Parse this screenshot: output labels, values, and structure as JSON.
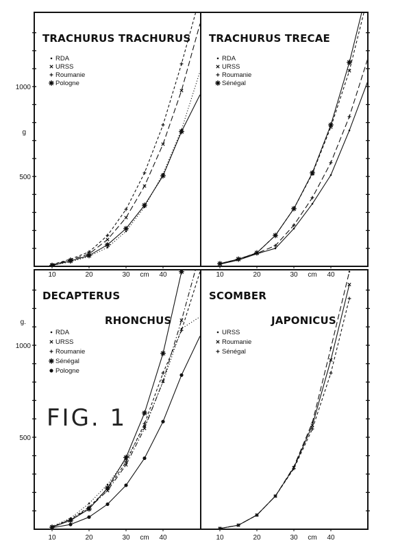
{
  "figure_label": "FIG. 1",
  "colors": {
    "ink": "#111111",
    "paper": "#ffffff"
  },
  "chart_data": [
    {
      "type": "line",
      "title": "TRACHURUS TRACHURUS",
      "xlabel": "cm",
      "ylabel": "g",
      "xticks": [
        "10",
        "20",
        "30",
        "40"
      ],
      "yticks": [
        {
          "label": "500",
          "value": 500
        },
        {
          "label": "1000",
          "value": 1000
        }
      ],
      "xlim": [
        5,
        50
      ],
      "ylim": [
        0,
        1420
      ],
      "legend": [
        "RDA",
        "URSS",
        "Roumanie",
        "Pologne"
      ],
      "legend_position": "top-left",
      "series": [
        {
          "name": "RDA",
          "marker": "dot",
          "line": "dotted",
          "x": [
            10,
            15,
            20,
            25,
            30,
            35,
            40,
            45,
            50
          ],
          "y": [
            5,
            25,
            55,
            105,
            195,
            330,
            515,
            760,
            1085
          ]
        },
        {
          "name": "URSS",
          "marker": "x",
          "line": "longdash",
          "x": [
            10,
            15,
            20,
            25,
            30,
            35,
            40,
            45,
            50
          ],
          "y": [
            8,
            35,
            69,
            149,
            271,
            447,
            680,
            978,
            1350
          ]
        },
        {
          "name": "Roumanie",
          "marker": "plus",
          "line": "shortdash",
          "x": [
            10,
            15,
            20,
            25,
            30,
            35,
            40,
            45,
            50
          ],
          "y": [
            10,
            40,
            80,
            172,
            317,
            520,
            787,
            1127,
            1500
          ]
        },
        {
          "name": "Pologne",
          "marker": "star",
          "line": "solid",
          "x": [
            10,
            15,
            20,
            25,
            30,
            35,
            40,
            45,
            50
          ],
          "y": [
            5,
            30,
            60,
            120,
            210,
            340,
            504,
            750,
            955
          ]
        }
      ]
    },
    {
      "type": "line",
      "title": "TRACHURUS   TRECAE",
      "xlabel": "cm",
      "ylabel": "g",
      "xticks": [
        "10",
        "20",
        "30",
        "40"
      ],
      "yticks": [],
      "xlim": [
        5,
        50
      ],
      "ylim": [
        0,
        1420
      ],
      "legend": [
        "RDA",
        "URSS",
        "Roumanie",
        "Sénégal"
      ],
      "legend_position": "top-left",
      "series": [
        {
          "name": "RDA",
          "marker": "dot",
          "line": "solid",
          "x": [
            10,
            15,
            20,
            25,
            30,
            35,
            40,
            45,
            50
          ],
          "y": [
            12,
            35,
            70,
            100,
            210,
            348,
            508,
            756,
            1031
          ]
        },
        {
          "name": "URSS",
          "marker": "x",
          "line": "shortdash",
          "x": [
            10,
            15,
            20,
            25,
            30,
            35,
            40,
            45,
            50
          ],
          "y": [
            15,
            40,
            75,
            172,
            321,
            515,
            775,
            1088,
            1500
          ]
        },
        {
          "name": "Roumanie",
          "marker": "plus",
          "line": "longdash",
          "x": [
            10,
            15,
            20,
            25,
            30,
            35,
            40,
            45,
            50
          ],
          "y": [
            12,
            36,
            72,
            115,
            229,
            382,
            577,
            833,
            1157
          ]
        },
        {
          "name": "Sénégal",
          "marker": "star",
          "line": "solid",
          "x": [
            10,
            15,
            20,
            25,
            30,
            35,
            40,
            45,
            50
          ],
          "y": [
            15,
            40,
            75,
            172,
            321,
            520,
            787,
            1135,
            1550
          ]
        }
      ]
    },
    {
      "type": "line",
      "title": "DECAPTERUS",
      "title2": "RHONCHUS",
      "xlabel": "cm",
      "ylabel": "g.",
      "xticks": [
        "10",
        "20",
        "30",
        "40"
      ],
      "yticks": [
        {
          "label": "500",
          "value": 500
        },
        {
          "label": "1000",
          "value": 1000
        }
      ],
      "xlim": [
        5,
        50
      ],
      "ylim": [
        0,
        1400
      ],
      "legend": [
        "RDA",
        "URSS",
        "Roumanie",
        "Sénégal",
        "Pologne"
      ],
      "legend_position": "top-left",
      "series": [
        {
          "name": "RDA",
          "marker": "dot",
          "line": "dotted",
          "x": [
            10,
            15,
            20,
            25,
            30,
            35,
            40,
            45,
            50
          ],
          "y": [
            15,
            60,
            140,
            243,
            380,
            560,
            800,
            1090,
            1155
          ]
        },
        {
          "name": "URSS",
          "marker": "x",
          "line": "dashdot",
          "x": [
            10,
            15,
            20,
            25,
            30,
            35,
            40,
            45,
            50
          ],
          "y": [
            12,
            50,
            115,
            210,
            350,
            548,
            805,
            1136,
            1500
          ]
        },
        {
          "name": "Roumanie",
          "marker": "plus",
          "line": "shortdash",
          "x": [
            10,
            15,
            20,
            25,
            30,
            35,
            40,
            45,
            50
          ],
          "y": [
            12,
            55,
            120,
            220,
            365,
            574,
            849,
            1081,
            1400
          ]
        },
        {
          "name": "Sénégal",
          "marker": "star",
          "line": "solid",
          "x": [
            10,
            15,
            20,
            25,
            30,
            35,
            40,
            45
          ],
          "y": [
            11,
            48,
            110,
            224,
            390,
            632,
            956,
            1400
          ]
        },
        {
          "name": "Pologne",
          "marker": "dot-large",
          "line": "solid",
          "x": [
            10,
            15,
            20,
            25,
            30,
            35,
            40,
            45,
            50
          ],
          "y": [
            8,
            26,
            66,
            136,
            239,
            386,
            585,
            838,
            1050
          ]
        }
      ]
    },
    {
      "type": "line",
      "title": "SCOMBER",
      "title2": "JAPONICUS",
      "xlabel": "cm",
      "ylabel": "g",
      "xticks": [
        "10",
        "20",
        "30",
        "40"
      ],
      "yticks": [],
      "xlim": [
        5,
        50
      ],
      "ylim": [
        0,
        1400
      ],
      "legend": [
        "URSS",
        "Roumanie",
        "Sénégal"
      ],
      "legend_position": "top-left",
      "series": [
        {
          "name": "URSS",
          "marker": "dot",
          "line": "longdash",
          "x": [
            10,
            15,
            20,
            25,
            30,
            35,
            40,
            45
          ],
          "y": [
            4,
            22,
            77,
            180,
            340,
            580,
            985,
            1400
          ]
        },
        {
          "name": "Roumanie",
          "marker": "x",
          "line": "solid",
          "x": [
            10,
            15,
            20,
            25,
            30,
            35,
            40,
            45
          ],
          "y": [
            4,
            22,
            77,
            180,
            335,
            565,
            920,
            1330
          ]
        },
        {
          "name": "Sénégal",
          "marker": "plus",
          "line": "shortdash",
          "x": [
            10,
            15,
            20,
            25,
            30,
            35,
            40,
            45
          ],
          "y": [
            4,
            22,
            77,
            180,
            330,
            545,
            849,
            1254
          ]
        }
      ]
    }
  ]
}
